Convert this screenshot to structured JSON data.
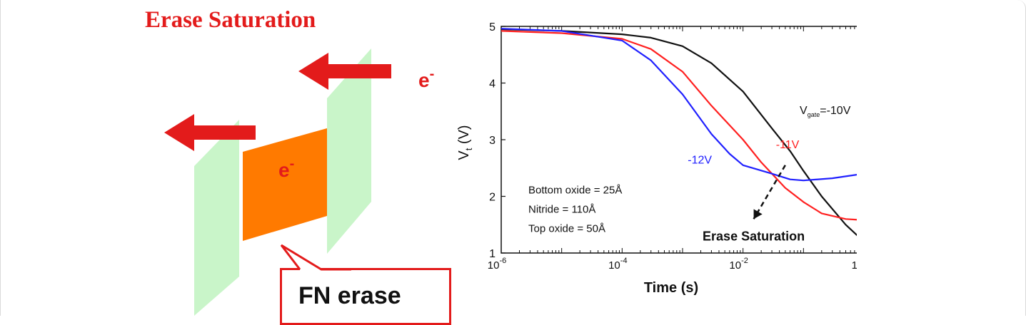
{
  "diagram": {
    "title": "Erase Saturation",
    "electron_label_top": "e",
    "electron_label_middle": "e",
    "electron_superscript": "-",
    "fn_label": "FN erase",
    "colors": {
      "title": "#e31b1b",
      "arrows": "#e31b1b",
      "oxide_planes": "#c9f5c9",
      "nitride_trap": "#ff7a00",
      "callout_border": "#e31b1b"
    }
  },
  "chart_data": {
    "type": "line",
    "xlabel": "Time (s)",
    "ylabel": "V",
    "ylabel_sub": "t",
    "ylabel_unit": " (V)",
    "xscale": "log",
    "xlim": [
      1e-06,
      1
    ],
    "ylim": [
      1,
      5
    ],
    "x_tick_labels": [
      {
        "base": "10",
        "exp": "-6",
        "value": 1e-06
      },
      {
        "base": "10",
        "exp": "-4",
        "value": 0.0001
      },
      {
        "base": "10",
        "exp": "-2",
        "value": 0.01
      },
      {
        "base": "10",
        "exp": "0",
        "value": 1
      }
    ],
    "y_ticks": [
      1,
      2,
      3,
      4,
      5
    ],
    "series": [
      {
        "name": "Vgate=-10V",
        "label_main": "V",
        "label_sub": "gate",
        "label_rest": "=-10V",
        "color": "#111111",
        "x": [
          1e-06,
          1e-05,
          0.0001,
          0.0003,
          0.001,
          0.003,
          0.01,
          0.03,
          0.06,
          0.1,
          0.2,
          0.5,
          1
        ],
        "y": [
          4.95,
          4.92,
          4.86,
          4.8,
          4.65,
          4.35,
          3.85,
          3.2,
          2.8,
          2.45,
          2.0,
          1.5,
          1.2
        ]
      },
      {
        "name": "-11V",
        "label": "-11V",
        "color": "#ff2020",
        "x": [
          1e-06,
          1e-05,
          0.0001,
          0.0003,
          0.001,
          0.003,
          0.01,
          0.02,
          0.05,
          0.1,
          0.2,
          0.5,
          1
        ],
        "y": [
          4.92,
          4.88,
          4.78,
          4.6,
          4.2,
          3.6,
          3.0,
          2.6,
          2.15,
          1.9,
          1.7,
          1.6,
          1.58
        ]
      },
      {
        "name": "-12V",
        "label": "-12V",
        "color": "#2020ff",
        "x": [
          1e-06,
          1e-05,
          0.0001,
          0.0003,
          0.001,
          0.003,
          0.006,
          0.01,
          0.03,
          0.06,
          0.1,
          0.3,
          1
        ],
        "y": [
          4.96,
          4.92,
          4.75,
          4.4,
          3.8,
          3.1,
          2.75,
          2.55,
          2.4,
          2.3,
          2.28,
          2.32,
          2.4
        ]
      }
    ],
    "annotations": {
      "params": [
        "Bottom oxide = 25Å",
        "Nitride = 110Å",
        "Top oxide = 50Å"
      ],
      "saturation_label": "Erase Saturation",
      "arrow_from": {
        "x": 0.05,
        "y": 2.55
      },
      "arrow_to": {
        "x": 0.015,
        "y": 1.6
      }
    }
  }
}
